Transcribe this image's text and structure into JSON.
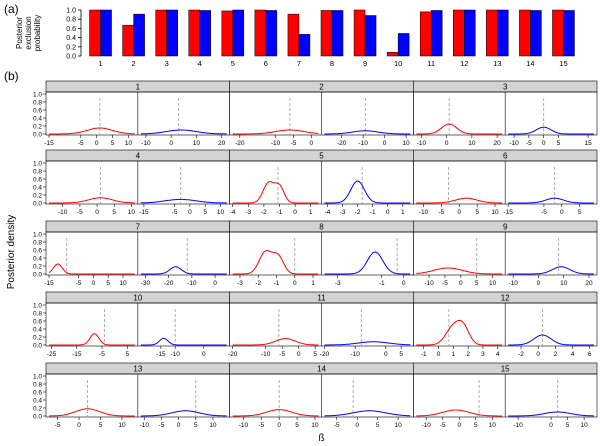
{
  "figure_labels": {
    "a": "(a)",
    "b": "(b)"
  },
  "colors": {
    "red": "#ff0000",
    "blue": "#0000ff",
    "header": "#d3d3d3",
    "vline": "#999999"
  },
  "chart_data": [
    {
      "type": "bar",
      "ylabel": "Posterior exclusion probability",
      "ylabel_lines": [
        "Posterior",
        "exclusion",
        "probability"
      ],
      "categories": [
        "1",
        "2",
        "3",
        "4",
        "5",
        "6",
        "7",
        "8",
        "9",
        "10",
        "11",
        "12",
        "13",
        "14",
        "15"
      ],
      "ylim": [
        0,
        1.0
      ],
      "yticks": [
        "0.0",
        "0.2",
        "0.4",
        "0.6",
        "0.8",
        "1.0"
      ],
      "series": [
        {
          "color": "#ff0000",
          "values": [
            1.0,
            0.67,
            1.0,
            1.0,
            0.98,
            1.0,
            0.91,
            0.99,
            1.0,
            0.08,
            0.96,
            1.0,
            1.0,
            1.0,
            1.0
          ]
        },
        {
          "color": "#0000ff",
          "values": [
            1.0,
            0.91,
            1.0,
            0.99,
            1.0,
            0.99,
            0.47,
            0.99,
            0.88,
            0.49,
            0.99,
            1.0,
            1.0,
            0.99,
            0.99
          ]
        }
      ]
    },
    {
      "type": "line",
      "ylabel": "Posterior density",
      "xlabel": "ß",
      "yticks": [
        "0.0",
        "0.2",
        "0.4",
        "0.6",
        "0.8",
        "1.0"
      ],
      "ylim": [
        0,
        1.0
      ],
      "panels": [
        {
          "title": "1",
          "red": {
            "range": [
              -15,
              12
            ],
            "ticks": [
              "-15",
              "-5",
              "0",
              "5",
              "10"
            ],
            "tickvals": [
              -15,
              -5,
              0,
              5,
              10
            ],
            "vline": 1,
            "peaks": [
              [
                1,
                0.15,
                4
              ]
            ]
          },
          "blue": {
            "range": [
              -12,
              22
            ],
            "ticks": [
              "-10",
              "0",
              "10",
              "20"
            ],
            "tickvals": [
              -10,
              0,
              10,
              20
            ],
            "vline": 3,
            "peaks": [
              [
                4,
                0.1,
                6
              ]
            ]
          }
        },
        {
          "title": "2",
          "red": {
            "range": [
              -22,
              2
            ],
            "ticks": [
              "-20",
              "-10",
              "-5",
              "0"
            ],
            "tickvals": [
              -20,
              -10,
              -5,
              0
            ],
            "vline": -6,
            "peaks": [
              [
                -6,
                0.1,
                4
              ]
            ]
          },
          "blue": {
            "range": [
              -28,
              12
            ],
            "ticks": [
              "-20",
              "-10",
              "0",
              "10"
            ],
            "tickvals": [
              -20,
              -10,
              0,
              10
            ],
            "vline": -9,
            "peaks": [
              [
                -9,
                0.08,
                6
              ]
            ]
          }
        },
        {
          "title": "3",
          "red": {
            "range": [
              -12,
              22
            ],
            "ticks": [
              "-10",
              "0",
              "10",
              "20"
            ],
            "tickvals": [
              -10,
              0,
              10,
              20
            ],
            "vline": 1,
            "peaks": [
              [
                1,
                0.25,
                3
              ]
            ]
          },
          "blue": {
            "range": [
              -12,
              17
            ],
            "ticks": [
              "-10",
              "-5",
              "0",
              "5",
              "15"
            ],
            "tickvals": [
              -10,
              -5,
              0,
              5,
              15
            ],
            "vline": 0,
            "peaks": [
              [
                0,
                0.17,
                2.5
              ]
            ]
          }
        },
        {
          "title": "4",
          "red": {
            "range": [
              -14,
              11
            ],
            "ticks": [
              "-10",
              "-5",
              "0",
              "5",
              "10"
            ],
            "tickvals": [
              -10,
              -5,
              0,
              5,
              10
            ],
            "vline": 1,
            "peaks": [
              [
                1,
                0.13,
                3.5
              ]
            ]
          },
          "blue": {
            "range": [
              -16,
              12
            ],
            "ticks": [
              "-15",
              "-5",
              "0",
              "5",
              "10"
            ],
            "tickvals": [
              -15,
              -5,
              0,
              5,
              10
            ],
            "vline": -3,
            "peaks": [
              [
                -3,
                0.09,
                5
              ]
            ]
          }
        },
        {
          "title": "5",
          "red": {
            "range": [
              -4,
              1.5
            ],
            "ticks": [
              "-4",
              "-3",
              "-2",
              "-1",
              "0",
              "1"
            ],
            "tickvals": [
              -4,
              -3,
              -2,
              -1,
              0,
              1
            ],
            "vline": -1.1,
            "peaks": [
              [
                -1.7,
                0.5,
                0.35
              ],
              [
                -1.0,
                0.4,
                0.3
              ]
            ]
          },
          "blue": {
            "range": [
              -4.2,
              1.5
            ],
            "ticks": [
              "-4",
              "-3",
              "-2",
              "-1",
              "0",
              "1"
            ],
            "tickvals": [
              -4,
              -3,
              -2,
              -1,
              0,
              1
            ],
            "vline": -1.7,
            "peaks": [
              [
                -2.0,
                0.55,
                0.45
              ]
            ]
          }
        },
        {
          "title": "6",
          "red": {
            "range": [
              -12,
              12
            ],
            "ticks": [
              "-10",
              "-5",
              "0",
              "5",
              "10"
            ],
            "tickvals": [
              -10,
              -5,
              0,
              5,
              10
            ],
            "vline": -3,
            "peaks": [
              [
                2,
                0.12,
                3
              ]
            ]
          },
          "blue": {
            "range": [
              -15,
              9
            ],
            "ticks": [
              "-15",
              "-5",
              "0",
              "5"
            ],
            "tickvals": [
              -15,
              -5,
              0,
              5
            ],
            "vline": -2,
            "peaks": [
              [
                -2,
                0.12,
                2.5
              ]
            ]
          }
        },
        {
          "title": "7",
          "red": {
            "range": [
              -15,
              14
            ],
            "ticks": [
              "-15",
              "-5",
              "0",
              "5",
              "10"
            ],
            "tickvals": [
              -15,
              -5,
              0,
              5,
              10
            ],
            "vline": -9,
            "peaks": [
              [
                -12,
                0.25,
                1.5
              ]
            ]
          },
          "blue": {
            "range": [
              -32,
              5
            ],
            "ticks": [
              "-30",
              "-20",
              "-10",
              "0"
            ],
            "tickvals": [
              -30,
              -20,
              -10,
              0
            ],
            "vline": -12,
            "peaks": [
              [
                -17,
                0.18,
                2.5
              ]
            ]
          }
        },
        {
          "title": "8",
          "red": {
            "range": [
              -3.4,
              1.3
            ],
            "ticks": [
              "-3",
              "-2",
              "-1",
              "0",
              "1"
            ],
            "tickvals": [
              -3,
              -2,
              -1,
              0,
              1
            ],
            "vline": 0,
            "peaks": [
              [
                -1.6,
                0.55,
                0.35
              ],
              [
                -0.9,
                0.42,
                0.3
              ]
            ]
          },
          "blue": {
            "range": [
              -3.6,
              0.3
            ],
            "ticks": [
              "-3",
              "-1",
              "0"
            ],
            "tickvals": [
              -3,
              -1,
              0
            ],
            "vline": -0.3,
            "peaks": [
              [
                -1.3,
                0.55,
                0.35
              ]
            ]
          }
        },
        {
          "title": "9",
          "red": {
            "range": [
              -14,
              13
            ],
            "ticks": [
              "-10",
              "-5",
              "0",
              "5",
              "10"
            ],
            "tickvals": [
              -10,
              -5,
              0,
              5,
              10
            ],
            "vline": 5,
            "peaks": [
              [
                -4,
                0.15,
                4.5
              ]
            ]
          },
          "blue": {
            "range": [
              -12,
              22
            ],
            "ticks": [
              "-10",
              "0",
              "10",
              "20"
            ],
            "tickvals": [
              -10,
              0,
              10,
              20
            ],
            "vline": 8,
            "peaks": [
              [
                9,
                0.18,
                3.5
              ]
            ]
          }
        },
        {
          "title": "10",
          "red": {
            "range": [
              -26,
              8
            ],
            "ticks": [
              "-25",
              "-15",
              "-5",
              "5"
            ],
            "tickvals": [
              -25,
              -15,
              -5,
              5
            ],
            "vline": -4,
            "peaks": [
              [
                -8,
                0.28,
                1.8
              ]
            ]
          },
          "blue": {
            "range": [
              -22,
              8
            ],
            "ticks": [
              "-15",
              "-10",
              "0"
            ],
            "tickvals": [
              -15,
              -10,
              0
            ],
            "vline": -10,
            "peaks": [
              [
                -14,
                0.17,
                1.5
              ]
            ]
          }
        },
        {
          "title": "11",
          "red": {
            "range": [
              -20,
              6
            ],
            "ticks": [
              "-20",
              "-10",
              "-5",
              "0",
              "5"
            ],
            "tickvals": [
              -20,
              -10,
              -5,
              0,
              5
            ],
            "vline": -6,
            "peaks": [
              [
                -4,
                0.16,
                3
              ]
            ]
          },
          "blue": {
            "range": [
              -20,
              8
            ],
            "ticks": [
              "-20",
              "-10",
              "0",
              "5"
            ],
            "tickvals": [
              -20,
              -10,
              0,
              5
            ],
            "vline": -8,
            "peaks": [
              [
                -4,
                0.08,
                5
              ]
            ]
          }
        },
        {
          "title": "12",
          "red": {
            "range": [
              -1.5,
              4.3
            ],
            "ticks": [
              "-1",
              "0",
              "1",
              "2",
              "3",
              "4"
            ],
            "tickvals": [
              -1,
              0,
              1,
              2,
              3,
              4
            ],
            "vline": 0.7,
            "peaks": [
              [
                1.0,
                0.45,
                0.5
              ],
              [
                1.7,
                0.38,
                0.4
              ]
            ]
          },
          "blue": {
            "range": [
              -3.5,
              6.5
            ],
            "ticks": [
              "-2",
              "0",
              "2",
              "4",
              "6"
            ],
            "tickvals": [
              -2,
              0,
              2,
              4,
              6
            ],
            "vline": 0.5,
            "peaks": [
              [
                0.5,
                0.25,
                1.0
              ]
            ]
          }
        },
        {
          "title": "13",
          "red": {
            "range": [
              -7,
              13
            ],
            "ticks": [
              "-5",
              "0",
              "5",
              "10"
            ],
            "tickvals": [
              -5,
              0,
              5,
              10
            ],
            "vline": 2,
            "peaks": [
              [
                2,
                0.18,
                2.8
              ]
            ]
          },
          "blue": {
            "range": [
              -11,
              14
            ],
            "ticks": [
              "-10",
              "-5",
              "0",
              "5",
              "10"
            ],
            "tickvals": [
              -10,
              -5,
              0,
              5,
              10
            ],
            "vline": 5,
            "peaks": [
              [
                2,
                0.13,
                4
              ]
            ]
          }
        },
        {
          "title": "14",
          "red": {
            "range": [
              -13,
              11
            ],
            "ticks": [
              "-10",
              "-5",
              "0",
              "5",
              "10"
            ],
            "tickvals": [
              -10,
              -5,
              0,
              5,
              10
            ],
            "vline": 0,
            "peaks": [
              [
                0,
                0.16,
                3.5
              ]
            ]
          },
          "blue": {
            "range": [
              -8,
              13
            ],
            "ticks": [
              "-5",
              "0",
              "5",
              "10"
            ],
            "tickvals": [
              -5,
              0,
              5,
              10
            ],
            "vline": -1,
            "peaks": [
              [
                3,
                0.13,
                4
              ]
            ]
          }
        },
        {
          "title": "15",
          "red": {
            "range": [
              -13,
              13
            ],
            "ticks": [
              "-10",
              "-5",
              "0",
              "5",
              "10"
            ],
            "tickvals": [
              -10,
              -5,
              0,
              5,
              10
            ],
            "vline": 6,
            "peaks": [
              [
                -1,
                0.15,
                4
              ]
            ]
          },
          "blue": {
            "range": [
              -13,
              13
            ],
            "ticks": [
              "-10",
              "0",
              "5",
              "10"
            ],
            "tickvals": [
              -10,
              0,
              5,
              10
            ],
            "vline": 2,
            "peaks": [
              [
                2,
                0.1,
                4
              ]
            ]
          }
        }
      ]
    }
  ]
}
